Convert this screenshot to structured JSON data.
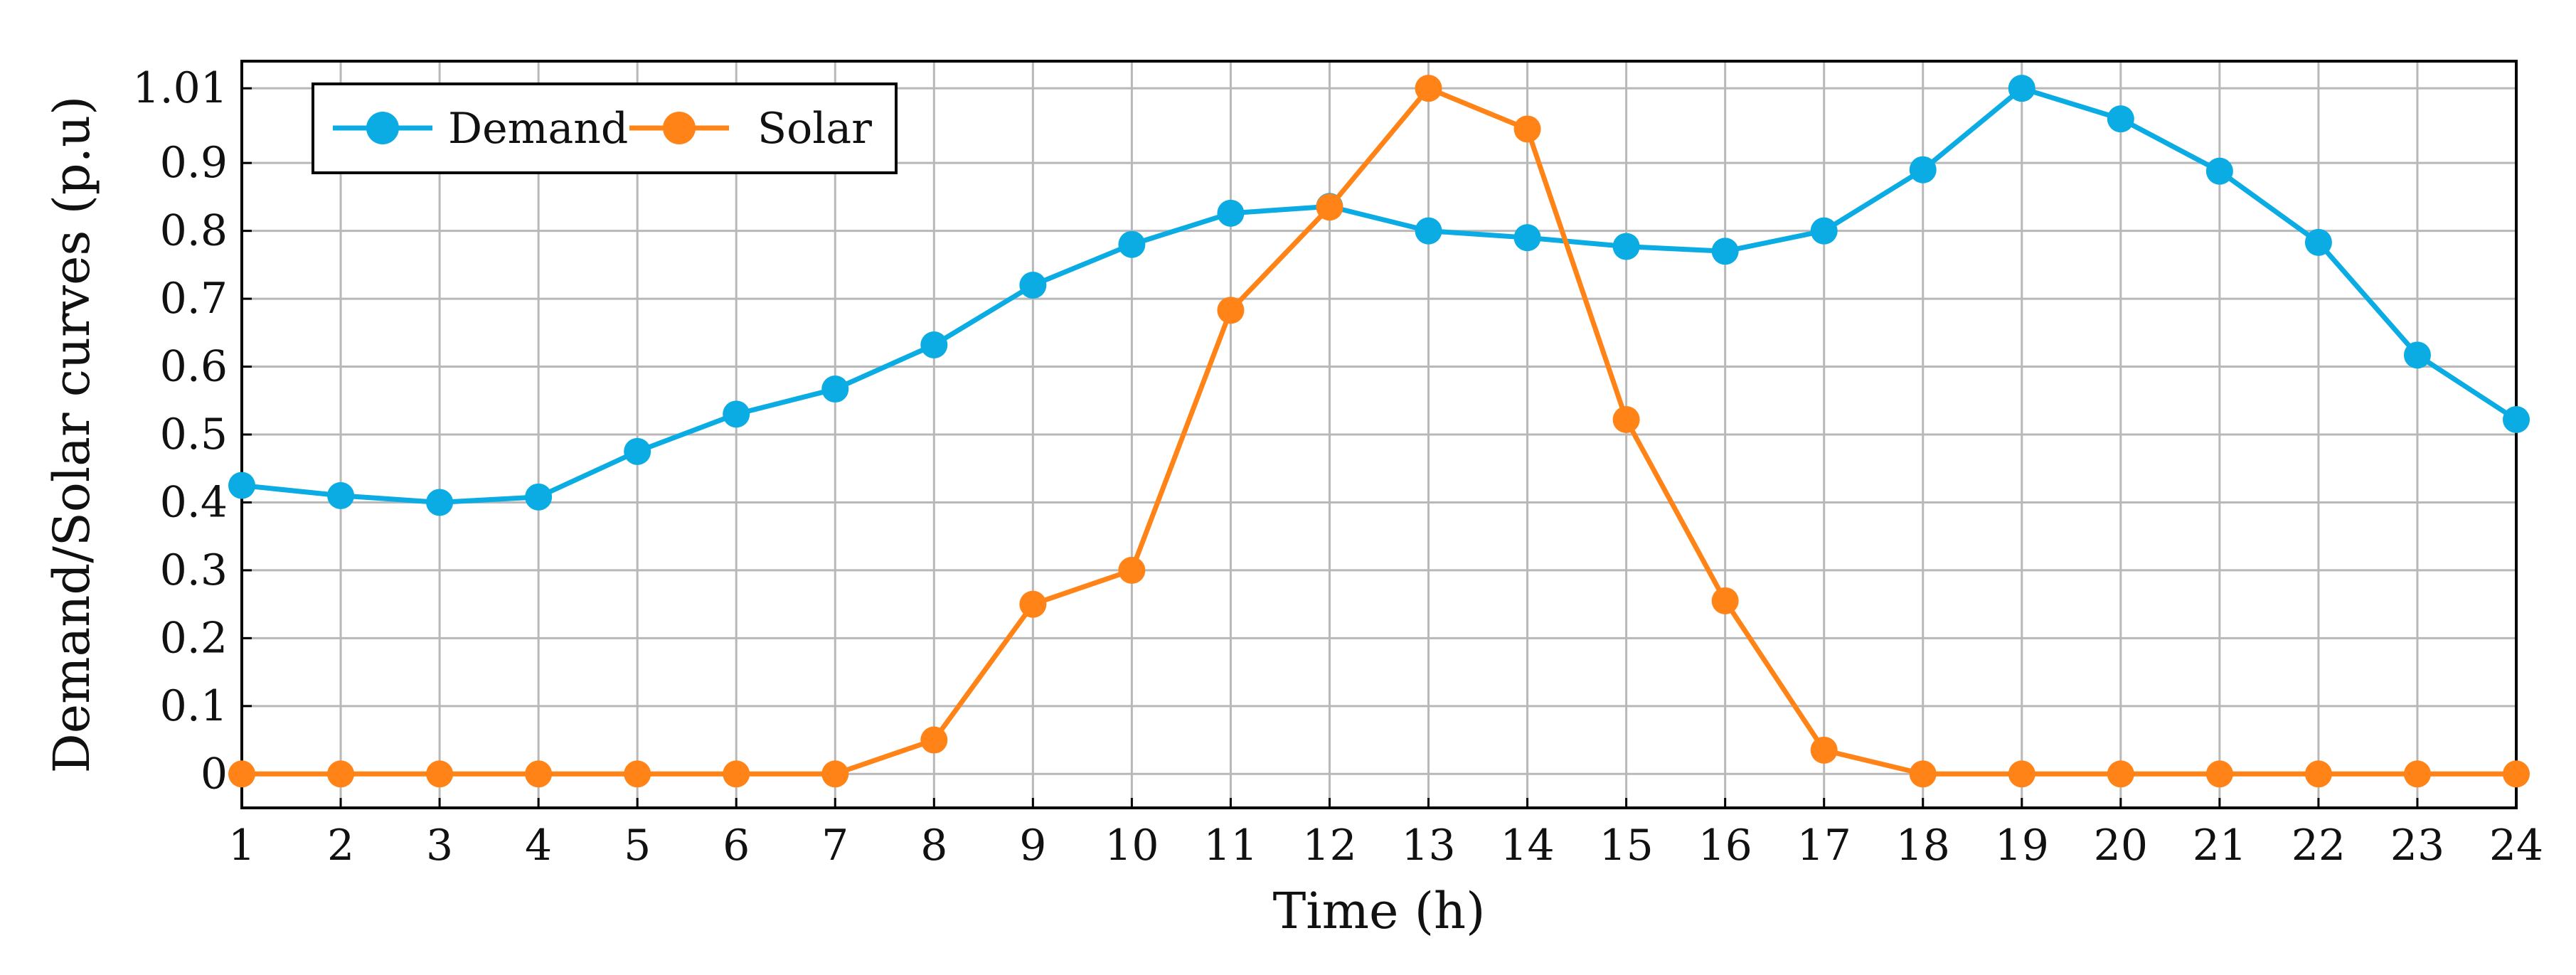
{
  "chart_data": {
    "type": "line",
    "title": "",
    "xlabel": "Time (h)",
    "ylabel": "Demand/Solar curves (p.u)",
    "x": [
      1,
      2,
      3,
      4,
      5,
      6,
      7,
      8,
      9,
      10,
      11,
      12,
      13,
      14,
      15,
      16,
      17,
      18,
      19,
      20,
      21,
      22,
      23,
      24
    ],
    "xlim": [
      1,
      24
    ],
    "ylim": [
      -0.05,
      1.05
    ],
    "yticks": [
      0,
      0.1,
      0.2,
      0.3,
      0.4,
      0.5,
      0.6,
      0.7,
      0.8,
      0.9,
      1.01
    ],
    "ytick_labels": [
      "0",
      "0.1",
      "0.2",
      "0.3",
      "0.4",
      "0.5",
      "0.6",
      "0.7",
      "0.8",
      "0.9",
      "1.01"
    ],
    "grid": true,
    "legend_position": "top-left",
    "series": [
      {
        "name": "Demand",
        "color": "#0AACE3",
        "values": [
          0.425,
          0.41,
          0.4,
          0.408,
          0.475,
          0.53,
          0.567,
          0.632,
          0.72,
          0.78,
          0.826,
          0.836,
          0.8,
          0.79,
          0.777,
          0.77,
          0.8,
          0.89,
          1.01,
          0.965,
          0.888,
          0.783,
          0.617,
          0.522
        ]
      },
      {
        "name": "Solar",
        "color": "#FF8316",
        "values": [
          0,
          0,
          0,
          0,
          0,
          0,
          0,
          0.05,
          0.25,
          0.3,
          0.683,
          0.835,
          1.01,
          0.95,
          0.522,
          0.255,
          0.035,
          0,
          0,
          0,
          0,
          0,
          0,
          0
        ]
      }
    ]
  }
}
